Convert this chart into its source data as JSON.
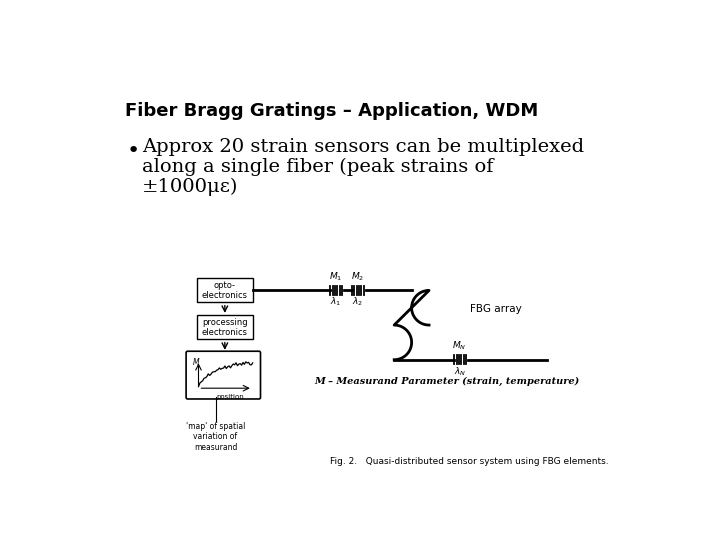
{
  "title": "Fiber Bragg Gratings – Application, WDM",
  "bullet_line1": "Approx 20 strain sensors can be multiplexed",
  "bullet_line2": "along a single fiber (peak strains of",
  "bullet_line3": "±1000με)",
  "bg_color": "#ffffff",
  "title_fontsize": 13,
  "bullet_fontsize": 14,
  "fig_caption": "Fig. 2.   Quasi-distributed sensor system using FBG elements.",
  "fig_label": "M – Measurand Parameter (strain, temperature)",
  "box1_label": "opto-\nelectronics",
  "box2_label": "processing\nelectronics",
  "box3_m_label": "M",
  "box3_pos_label": "position",
  "map_label": "'map' of spatial\nvariation of\nmeasurand",
  "fbg_label": "FBG array"
}
